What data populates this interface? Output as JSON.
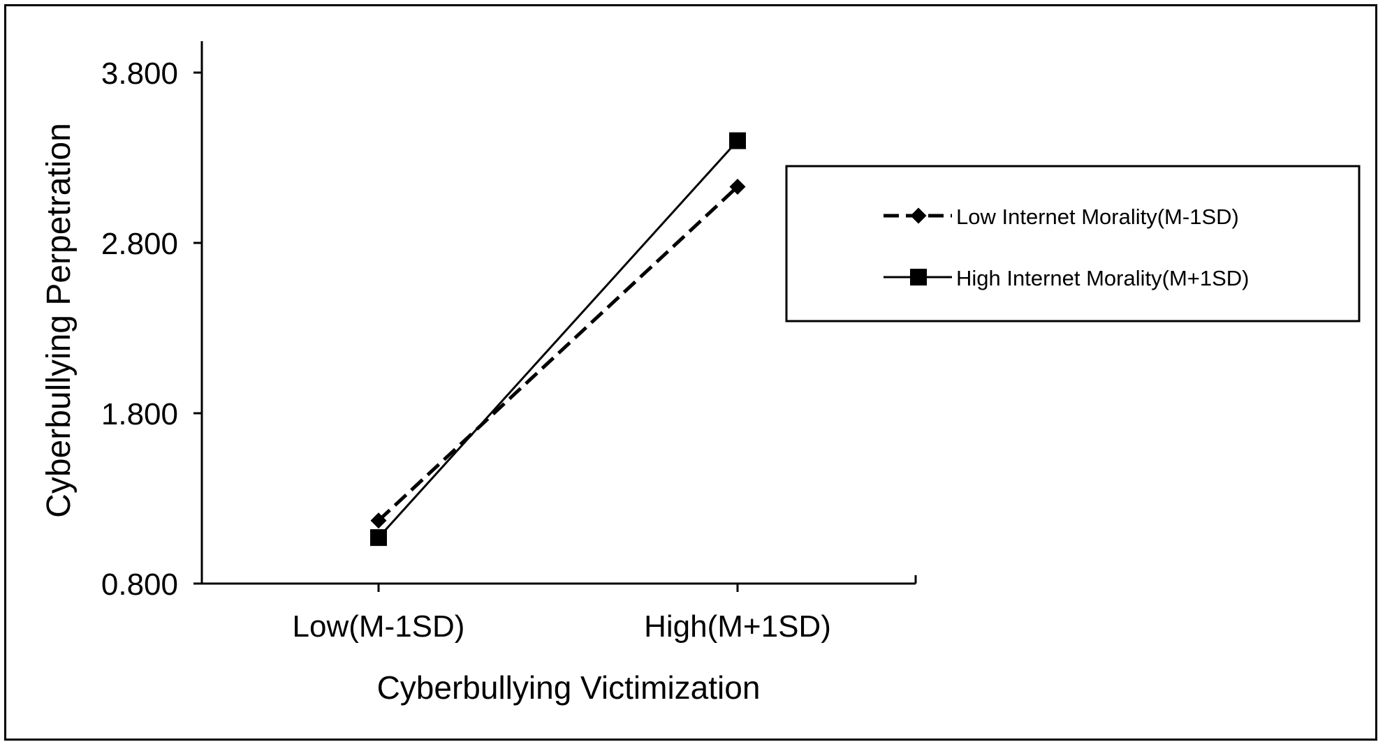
{
  "chart_data": {
    "type": "line",
    "x_title": "Cyberbullying Victimization",
    "y_title": "Cyberbullying Perpetration",
    "categories": [
      "Low(M-1SD)",
      "High(M+1SD)"
    ],
    "y_ticks": [
      "0.800",
      "1.800",
      "2.800",
      "3.800"
    ],
    "y_tick_values": [
      0.8,
      1.8,
      2.8,
      3.8
    ],
    "ylim": [
      0.8,
      3.8
    ],
    "grid": false,
    "legend_position": "right",
    "series": [
      {
        "name": "Low Internet Morality(M-1SD)",
        "values": [
          1.17,
          3.13
        ],
        "marker": "diamond",
        "line_style": "dashed",
        "color": "#000000"
      },
      {
        "name": "High Internet Morality(M+1SD)",
        "values": [
          1.07,
          3.4
        ],
        "marker": "square",
        "line_style": "solid",
        "color": "#000000"
      }
    ]
  }
}
